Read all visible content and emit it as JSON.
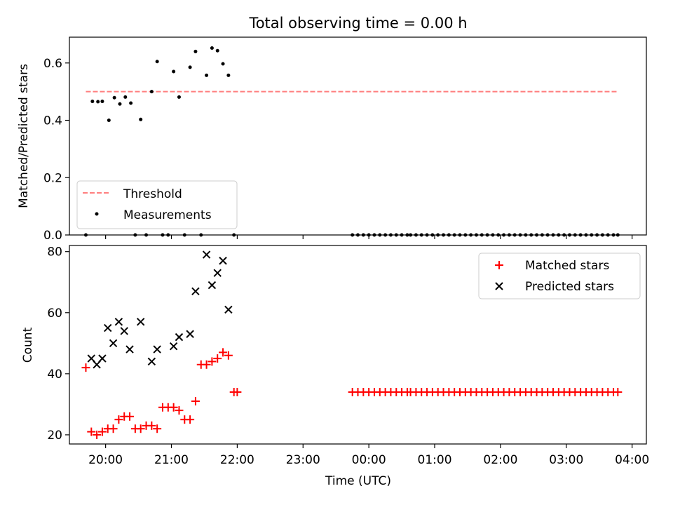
{
  "figure": {
    "title": "Total observing time = 0.00 h"
  },
  "chart_data": [
    {
      "type": "scatter",
      "ylabel": "Matched/Predicted stars",
      "x_axis": "time_utc",
      "xlim": [
        "19:27",
        "04:13"
      ],
      "ylim": [
        0,
        0.69
      ],
      "yticks": [
        0.0,
        0.2,
        0.4,
        0.6
      ],
      "yticklabels": [
        "0.0",
        "0.2",
        "0.4",
        "0.6"
      ],
      "legend": {
        "placement": "lower-left",
        "entries": [
          "Threshold",
          "Measurements"
        ]
      },
      "series": [
        {
          "name": "Threshold",
          "kind": "dashed-line",
          "color": "#ff7f7f",
          "points": [
            [
              "19:42",
              0.5
            ],
            [
              "03:47",
              0.5
            ]
          ]
        },
        {
          "name": "Measurements",
          "kind": "dot",
          "color": "#000000",
          "points": [
            [
              "19:42",
              0.0
            ],
            [
              "19:48",
              0.466
            ],
            [
              "19:53",
              0.465
            ],
            [
              "19:57",
              0.466
            ],
            [
              "20:03",
              0.4
            ],
            [
              "20:08",
              0.479
            ],
            [
              "20:13",
              0.457
            ],
            [
              "20:18",
              0.481
            ],
            [
              "20:23",
              0.46
            ],
            [
              "20:27",
              0.0
            ],
            [
              "20:32",
              0.403
            ],
            [
              "20:37",
              0.0
            ],
            [
              "20:42",
              0.5
            ],
            [
              "20:47",
              0.605
            ],
            [
              "20:52",
              0.0
            ],
            [
              "20:57",
              0.0
            ],
            [
              "21:02",
              0.57
            ],
            [
              "21:07",
              0.481
            ],
            [
              "21:12",
              0.0
            ],
            [
              "21:17",
              0.585
            ],
            [
              "21:22",
              0.64
            ],
            [
              "21:27",
              0.0
            ],
            [
              "21:32",
              0.557
            ],
            [
              "21:37",
              0.652
            ],
            [
              "21:42",
              0.643
            ],
            [
              "21:47",
              0.597
            ],
            [
              "21:52",
              0.557
            ],
            [
              "21:57",
              0.0
            ],
            [
              "23:45",
              0.0
            ],
            [
              "23:50",
              0.0
            ],
            [
              "23:55",
              0.0
            ],
            [
              "00:00",
              0.0
            ],
            [
              "00:05",
              0.0
            ],
            [
              "00:10",
              0.0
            ],
            [
              "00:15",
              0.0
            ],
            [
              "00:20",
              0.0
            ],
            [
              "00:25",
              0.0
            ],
            [
              "00:30",
              0.0
            ],
            [
              "00:35",
              0.0
            ],
            [
              "00:38",
              0.0
            ],
            [
              "00:43",
              0.0
            ],
            [
              "00:48",
              0.0
            ],
            [
              "00:53",
              0.0
            ],
            [
              "00:58",
              0.0
            ],
            [
              "01:03",
              0.0
            ],
            [
              "01:08",
              0.0
            ],
            [
              "01:13",
              0.0
            ],
            [
              "01:18",
              0.0
            ],
            [
              "01:23",
              0.0
            ],
            [
              "01:28",
              0.0
            ],
            [
              "01:33",
              0.0
            ],
            [
              "01:38",
              0.0
            ],
            [
              "01:43",
              0.0
            ],
            [
              "01:48",
              0.0
            ],
            [
              "01:53",
              0.0
            ],
            [
              "01:58",
              0.0
            ],
            [
              "02:03",
              0.0
            ],
            [
              "02:08",
              0.0
            ],
            [
              "02:13",
              0.0
            ],
            [
              "02:18",
              0.0
            ],
            [
              "02:23",
              0.0
            ],
            [
              "02:28",
              0.0
            ],
            [
              "02:33",
              0.0
            ],
            [
              "02:38",
              0.0
            ],
            [
              "02:43",
              0.0
            ],
            [
              "02:48",
              0.0
            ],
            [
              "02:53",
              0.0
            ],
            [
              "02:58",
              0.0
            ],
            [
              "03:03",
              0.0
            ],
            [
              "03:08",
              0.0
            ],
            [
              "03:13",
              0.0
            ],
            [
              "03:18",
              0.0
            ],
            [
              "03:23",
              0.0
            ],
            [
              "03:28",
              0.0
            ],
            [
              "03:33",
              0.0
            ],
            [
              "03:38",
              0.0
            ],
            [
              "03:43",
              0.0
            ],
            [
              "03:47",
              0.0
            ]
          ]
        }
      ]
    },
    {
      "type": "scatter",
      "ylabel": "Count",
      "xlabel": "Time (UTC)",
      "x_axis": "time_utc",
      "xlim": [
        "19:27",
        "04:13"
      ],
      "ylim": [
        17,
        82
      ],
      "yticks": [
        20,
        40,
        60,
        80
      ],
      "yticklabels": [
        "20",
        "40",
        "60",
        "80"
      ],
      "xticks": [
        "20:00",
        "21:00",
        "22:00",
        "23:00",
        "00:00",
        "01:00",
        "02:00",
        "03:00",
        "04:00"
      ],
      "xticklabels": [
        "20:00",
        "21:00",
        "22:00",
        "23:00",
        "00:00",
        "01:00",
        "02:00",
        "03:00",
        "04:00"
      ],
      "legend": {
        "placement": "top-right",
        "entries": [
          "Matched stars",
          "Predicted stars"
        ]
      },
      "series": [
        {
          "name": "Matched stars",
          "kind": "plus",
          "color": "#ff0000",
          "points": [
            [
              "19:42",
              42
            ],
            [
              "19:47",
              21
            ],
            [
              "19:52",
              20
            ],
            [
              "19:57",
              21
            ],
            [
              "20:02",
              22
            ],
            [
              "20:07",
              22
            ],
            [
              "20:12",
              25
            ],
            [
              "20:17",
              26
            ],
            [
              "20:22",
              26
            ],
            [
              "20:27",
              22
            ],
            [
              "20:32",
              22
            ],
            [
              "20:37",
              23
            ],
            [
              "20:42",
              23
            ],
            [
              "20:47",
              22
            ],
            [
              "20:52",
              29
            ],
            [
              "20:57",
              29
            ],
            [
              "21:02",
              29
            ],
            [
              "21:07",
              28
            ],
            [
              "21:12",
              25
            ],
            [
              "21:17",
              25
            ],
            [
              "21:22",
              31
            ],
            [
              "21:27",
              43
            ],
            [
              "21:32",
              43
            ],
            [
              "21:37",
              44
            ],
            [
              "21:42",
              45
            ],
            [
              "21:47",
              47
            ],
            [
              "21:52",
              46
            ],
            [
              "21:57",
              34
            ],
            [
              "22:00",
              34
            ],
            [
              "23:45",
              34
            ],
            [
              "23:50",
              34
            ],
            [
              "23:55",
              34
            ],
            [
              "00:00",
              34
            ],
            [
              "00:05",
              34
            ],
            [
              "00:10",
              34
            ],
            [
              "00:15",
              34
            ],
            [
              "00:20",
              34
            ],
            [
              "00:25",
              34
            ],
            [
              "00:30",
              34
            ],
            [
              "00:35",
              34
            ],
            [
              "00:38",
              34
            ],
            [
              "00:43",
              34
            ],
            [
              "00:48",
              34
            ],
            [
              "00:53",
              34
            ],
            [
              "00:58",
              34
            ],
            [
              "01:03",
              34
            ],
            [
              "01:08",
              34
            ],
            [
              "01:13",
              34
            ],
            [
              "01:18",
              34
            ],
            [
              "01:23",
              34
            ],
            [
              "01:28",
              34
            ],
            [
              "01:33",
              34
            ],
            [
              "01:38",
              34
            ],
            [
              "01:43",
              34
            ],
            [
              "01:48",
              34
            ],
            [
              "01:53",
              34
            ],
            [
              "01:58",
              34
            ],
            [
              "02:03",
              34
            ],
            [
              "02:08",
              34
            ],
            [
              "02:13",
              34
            ],
            [
              "02:18",
              34
            ],
            [
              "02:23",
              34
            ],
            [
              "02:28",
              34
            ],
            [
              "02:33",
              34
            ],
            [
              "02:38",
              34
            ],
            [
              "02:43",
              34
            ],
            [
              "02:48",
              34
            ],
            [
              "02:53",
              34
            ],
            [
              "02:58",
              34
            ],
            [
              "03:03",
              34
            ],
            [
              "03:08",
              34
            ],
            [
              "03:13",
              34
            ],
            [
              "03:18",
              34
            ],
            [
              "03:23",
              34
            ],
            [
              "03:28",
              34
            ],
            [
              "03:33",
              34
            ],
            [
              "03:38",
              34
            ],
            [
              "03:43",
              34
            ],
            [
              "03:47",
              34
            ]
          ]
        },
        {
          "name": "Predicted stars",
          "kind": "x",
          "color": "#000000",
          "points": [
            [
              "19:47",
              45
            ],
            [
              "19:52",
              43
            ],
            [
              "19:57",
              45
            ],
            [
              "20:02",
              55
            ],
            [
              "20:07",
              50
            ],
            [
              "20:12",
              57
            ],
            [
              "20:17",
              54
            ],
            [
              "20:22",
              48
            ],
            [
              "20:32",
              57
            ],
            [
              "20:42",
              44
            ],
            [
              "20:47",
              48
            ],
            [
              "21:02",
              49
            ],
            [
              "21:07",
              52
            ],
            [
              "21:17",
              53
            ],
            [
              "21:22",
              67
            ],
            [
              "21:32",
              79
            ],
            [
              "21:37",
              69
            ],
            [
              "21:42",
              73
            ],
            [
              "21:47",
              77
            ],
            [
              "21:52",
              61
            ]
          ]
        }
      ]
    }
  ]
}
